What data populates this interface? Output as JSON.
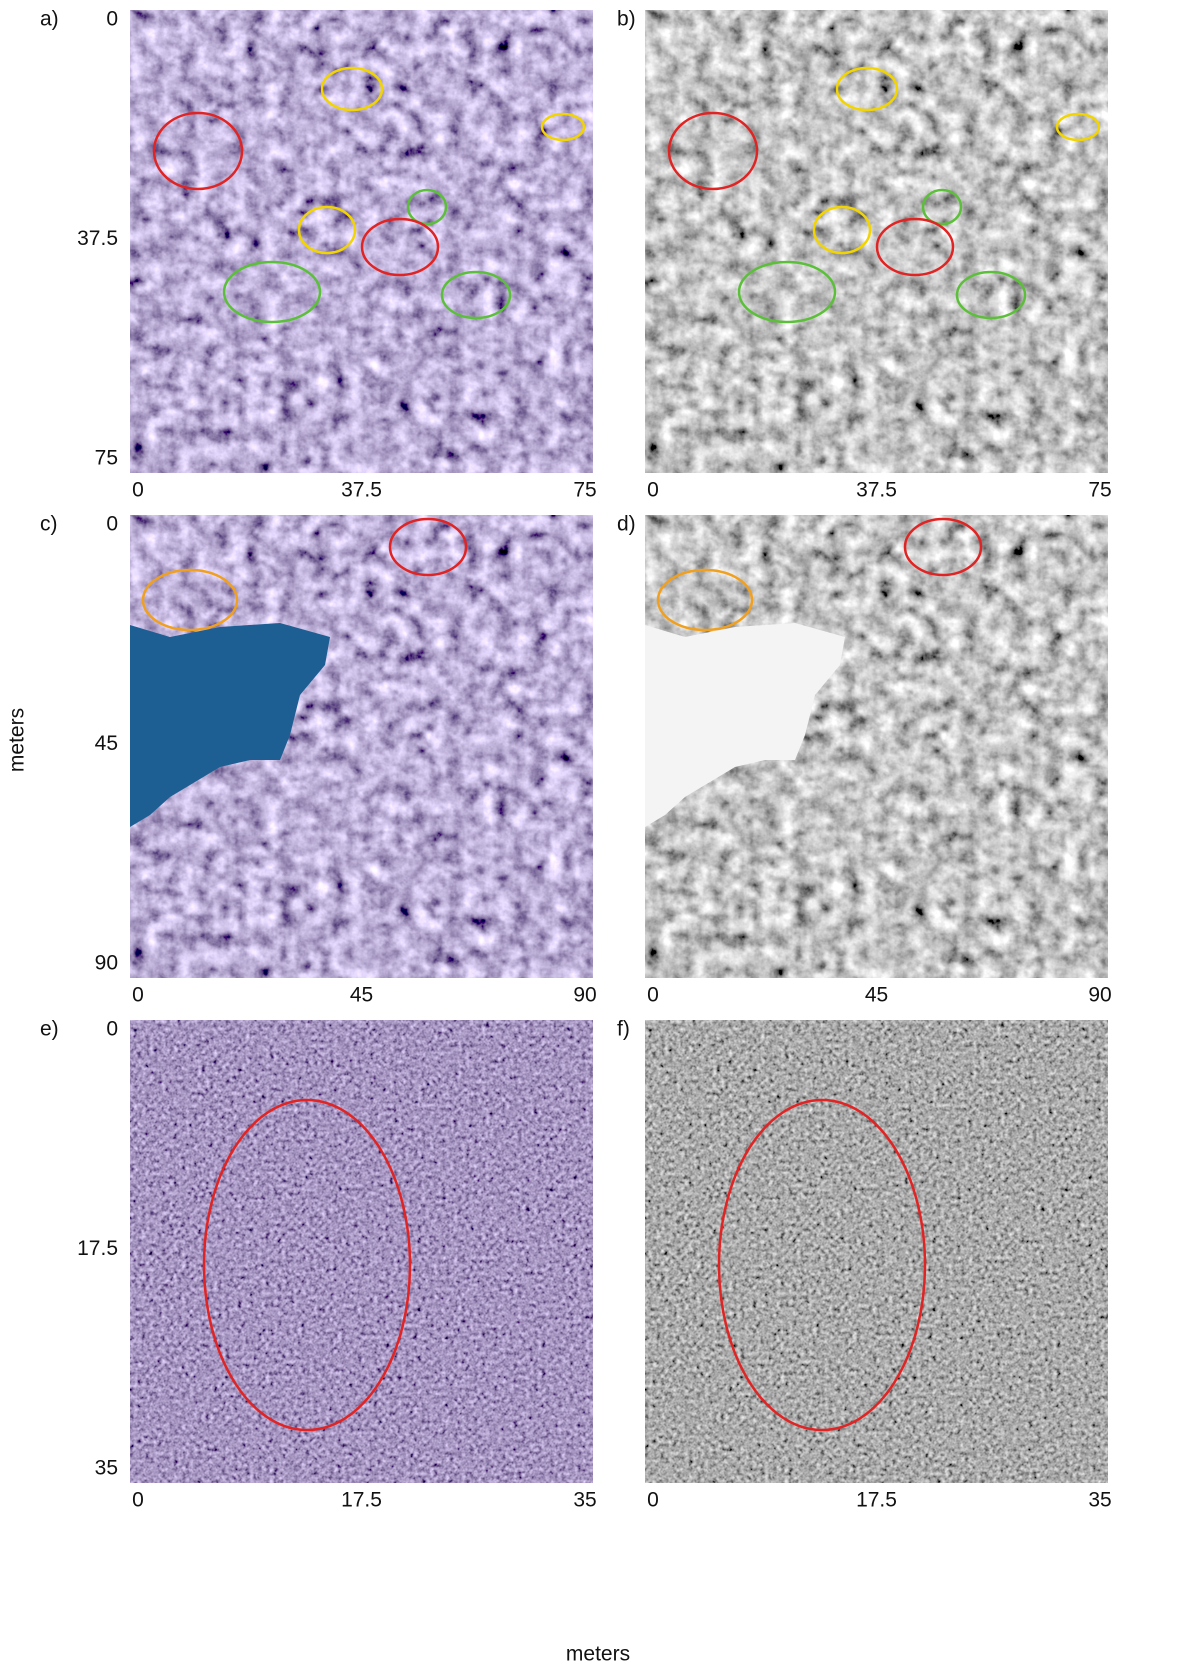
{
  "panels": [
    {
      "label": "a)",
      "xlim": [
        0,
        75
      ],
      "ylim": [
        0,
        75
      ],
      "xticks": [
        0,
        37.5,
        75
      ],
      "yticks": [
        0,
        37.5,
        75
      ]
    },
    {
      "label": "b)",
      "xlim": [
        0,
        75
      ],
      "ylim": [
        0,
        75
      ],
      "xticks": [
        0,
        37.5,
        75
      ]
    },
    {
      "label": "c)",
      "xlim": [
        0,
        90
      ],
      "ylim": [
        0,
        90
      ],
      "xticks": [
        0,
        45,
        90
      ],
      "yticks": [
        0,
        45,
        90
      ]
    },
    {
      "label": "d)",
      "xlim": [
        0,
        90
      ],
      "ylim": [
        0,
        90
      ],
      "xticks": [
        0,
        45,
        90
      ]
    },
    {
      "label": "e)",
      "xlim": [
        0,
        35
      ],
      "ylim": [
        0,
        35
      ],
      "xticks": [
        0,
        17.5,
        35
      ],
      "yticks": [
        0,
        17.5,
        35
      ]
    },
    {
      "label": "f)",
      "xlim": [
        0,
        35
      ],
      "ylim": [
        0,
        35
      ],
      "xticks": [
        0,
        17.5,
        35
      ]
    }
  ],
  "x_axis_label": "meters",
  "y_axis_label": "meters"
}
